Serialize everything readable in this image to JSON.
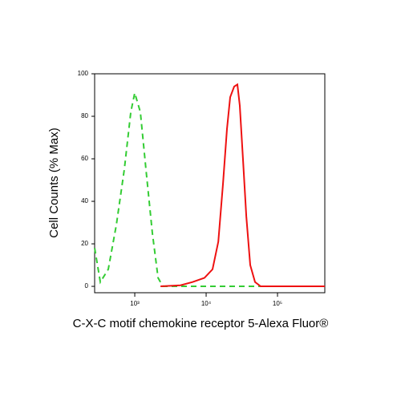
{
  "chart_data": {
    "type": "line",
    "xlabel": "C-X-C motif chemokine receptor 5-Alexa Fluor®",
    "ylabel": "Cell Counts (% Max)",
    "xscale": "log",
    "xlim": [
      274,
      460000
    ],
    "ylim": [
      -3,
      100
    ],
    "xticks": [
      {
        "value": 1000,
        "label": "10³"
      },
      {
        "value": 10000,
        "label": "10⁴"
      },
      {
        "value": 100000,
        "label": "10⁵"
      }
    ],
    "yticks": [
      0,
      20,
      40,
      60,
      80,
      100
    ],
    "series": [
      {
        "color": "#33cc33",
        "dash": true,
        "x": [
          274,
          329,
          425,
          552,
          714,
          880,
          1000,
          1198,
          1436,
          1766,
          2120,
          2470,
          460000
        ],
        "values": [
          18,
          2,
          8,
          29,
          55,
          82,
          91,
          82,
          55,
          25,
          4,
          0,
          0
        ]
      },
      {
        "color": "#ee1111",
        "dash": false,
        "x": [
          2290,
          4370,
          6440,
          9500,
          12300,
          14800,
          17200,
          19600,
          21700,
          24700,
          27400,
          29600,
          32900,
          36500,
          41500,
          48400,
          58000,
          460000
        ],
        "values": [
          0,
          0.5,
          2,
          4,
          8,
          21,
          48,
          74,
          89,
          94,
          95,
          85,
          59,
          33,
          10,
          2,
          0,
          0
        ]
      }
    ]
  }
}
